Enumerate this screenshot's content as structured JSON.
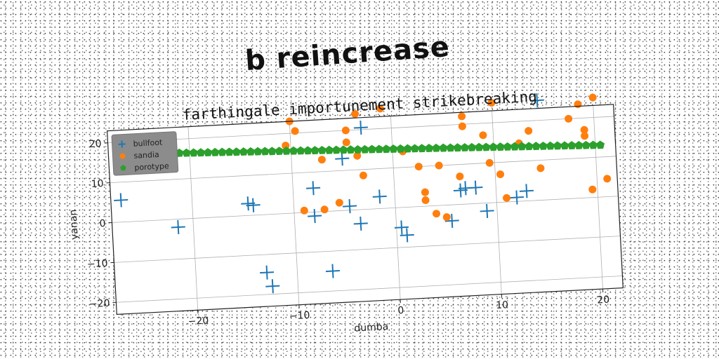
{
  "suptitle": "b reincrease",
  "chart_data": {
    "type": "scatter",
    "title": "farthingale importunement strikebreaking",
    "xlabel": "dumba",
    "ylabel": "yanan",
    "xlim": [
      -28,
      22
    ],
    "ylim": [
      -23,
      23
    ],
    "xticks": [
      -20,
      -10,
      0,
      10,
      20
    ],
    "yticks": [
      -20,
      -10,
      0,
      10,
      20
    ],
    "grid": true,
    "legend_position": "top-left",
    "series": [
      {
        "name": "bullfoot",
        "marker": "plus",
        "color": "#1f77b4",
        "points": [
          [
            -27,
            5.5
          ],
          [
            -21.5,
            -2
          ],
          [
            -14.5,
            3
          ],
          [
            -14,
            2.5
          ],
          [
            -13,
            -14.5
          ],
          [
            -12.5,
            -18
          ],
          [
            -8,
            6
          ],
          [
            -8,
            -1
          ],
          [
            -6.5,
            -15
          ],
          [
            -5,
            13
          ],
          [
            -4.5,
            1
          ],
          [
            -3.5,
            -3.5
          ],
          [
            -3,
            20.5
          ],
          [
            -1.5,
            3
          ],
          [
            0.5,
            -5
          ],
          [
            1,
            -7
          ],
          [
            5.5,
            -4
          ],
          [
            6.5,
            3.5
          ],
          [
            7,
            4
          ],
          [
            8,
            4
          ],
          [
            9,
            -2
          ],
          [
            12,
            1
          ],
          [
            13,
            2.5
          ],
          [
            14.5,
            25
          ]
        ]
      },
      {
        "name": "sandia",
        "marker": "circle",
        "color": "#ff7f0e",
        "points": [
          [
            -10.5,
            17
          ],
          [
            -10,
            23
          ],
          [
            -9.5,
            20.5
          ],
          [
            -9,
            0.5
          ],
          [
            -7,
            13
          ],
          [
            -7,
            0.5
          ],
          [
            -5.5,
            2
          ],
          [
            -4.5,
            20
          ],
          [
            -4.5,
            17
          ],
          [
            -3.5,
            24
          ],
          [
            -3.5,
            13.5
          ],
          [
            -3,
            8.5
          ],
          [
            -1,
            25
          ],
          [
            1,
            14
          ],
          [
            2.5,
            10
          ],
          [
            3,
            3.5
          ],
          [
            3,
            1.5
          ],
          [
            4,
            -2
          ],
          [
            4.5,
            10
          ],
          [
            5,
            -3
          ],
          [
            6.5,
            7
          ],
          [
            7,
            22
          ],
          [
            7,
            19.5
          ],
          [
            9,
            17
          ],
          [
            9.5,
            10
          ],
          [
            10,
            25
          ],
          [
            10.5,
            7
          ],
          [
            11,
            1
          ],
          [
            12.5,
            14.5
          ],
          [
            13.5,
            17.5
          ],
          [
            14.5,
            8
          ],
          [
            17.5,
            20
          ],
          [
            18.5,
            23.5
          ],
          [
            19,
            15.5
          ],
          [
            19,
            17
          ],
          [
            19.5,
            2
          ],
          [
            20,
            25
          ],
          [
            21,
            4.5
          ]
        ]
      },
      {
        "name": "porotype",
        "marker": "pentagon",
        "color": "#2ca02c",
        "line_from": [
          -21,
          16.5
        ],
        "line_to": [
          20.5,
          13
        ],
        "count": 60
      }
    ]
  }
}
